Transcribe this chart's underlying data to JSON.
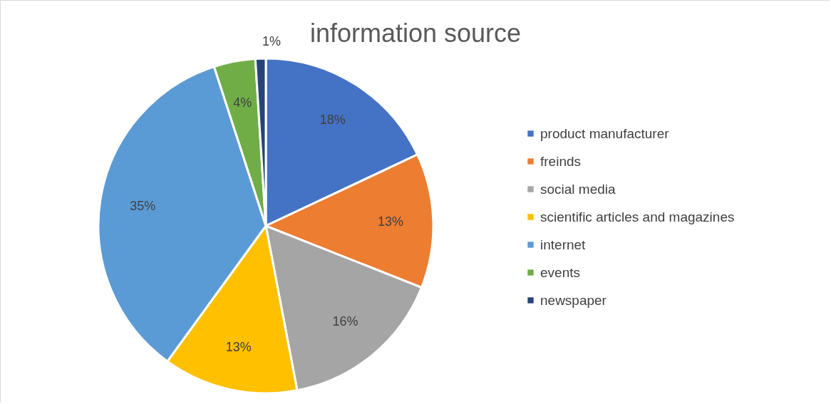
{
  "chart_data": {
    "type": "pie",
    "title": "information source",
    "categories": [
      "product manufacturer",
      "freinds",
      "social media",
      "scientific articles and magazines",
      "internet",
      "events",
      "newspaper"
    ],
    "values": [
      18,
      13,
      16,
      13,
      35,
      4,
      1
    ],
    "value_labels": [
      "18%",
      "13%",
      "16%",
      "13%",
      "35%",
      "4%",
      "1%"
    ],
    "colors": [
      "#4472c4",
      "#ed7d31",
      "#a5a5a5",
      "#ffc000",
      "#5b9bd5",
      "#70ad47",
      "#264478"
    ],
    "legend": "right"
  }
}
